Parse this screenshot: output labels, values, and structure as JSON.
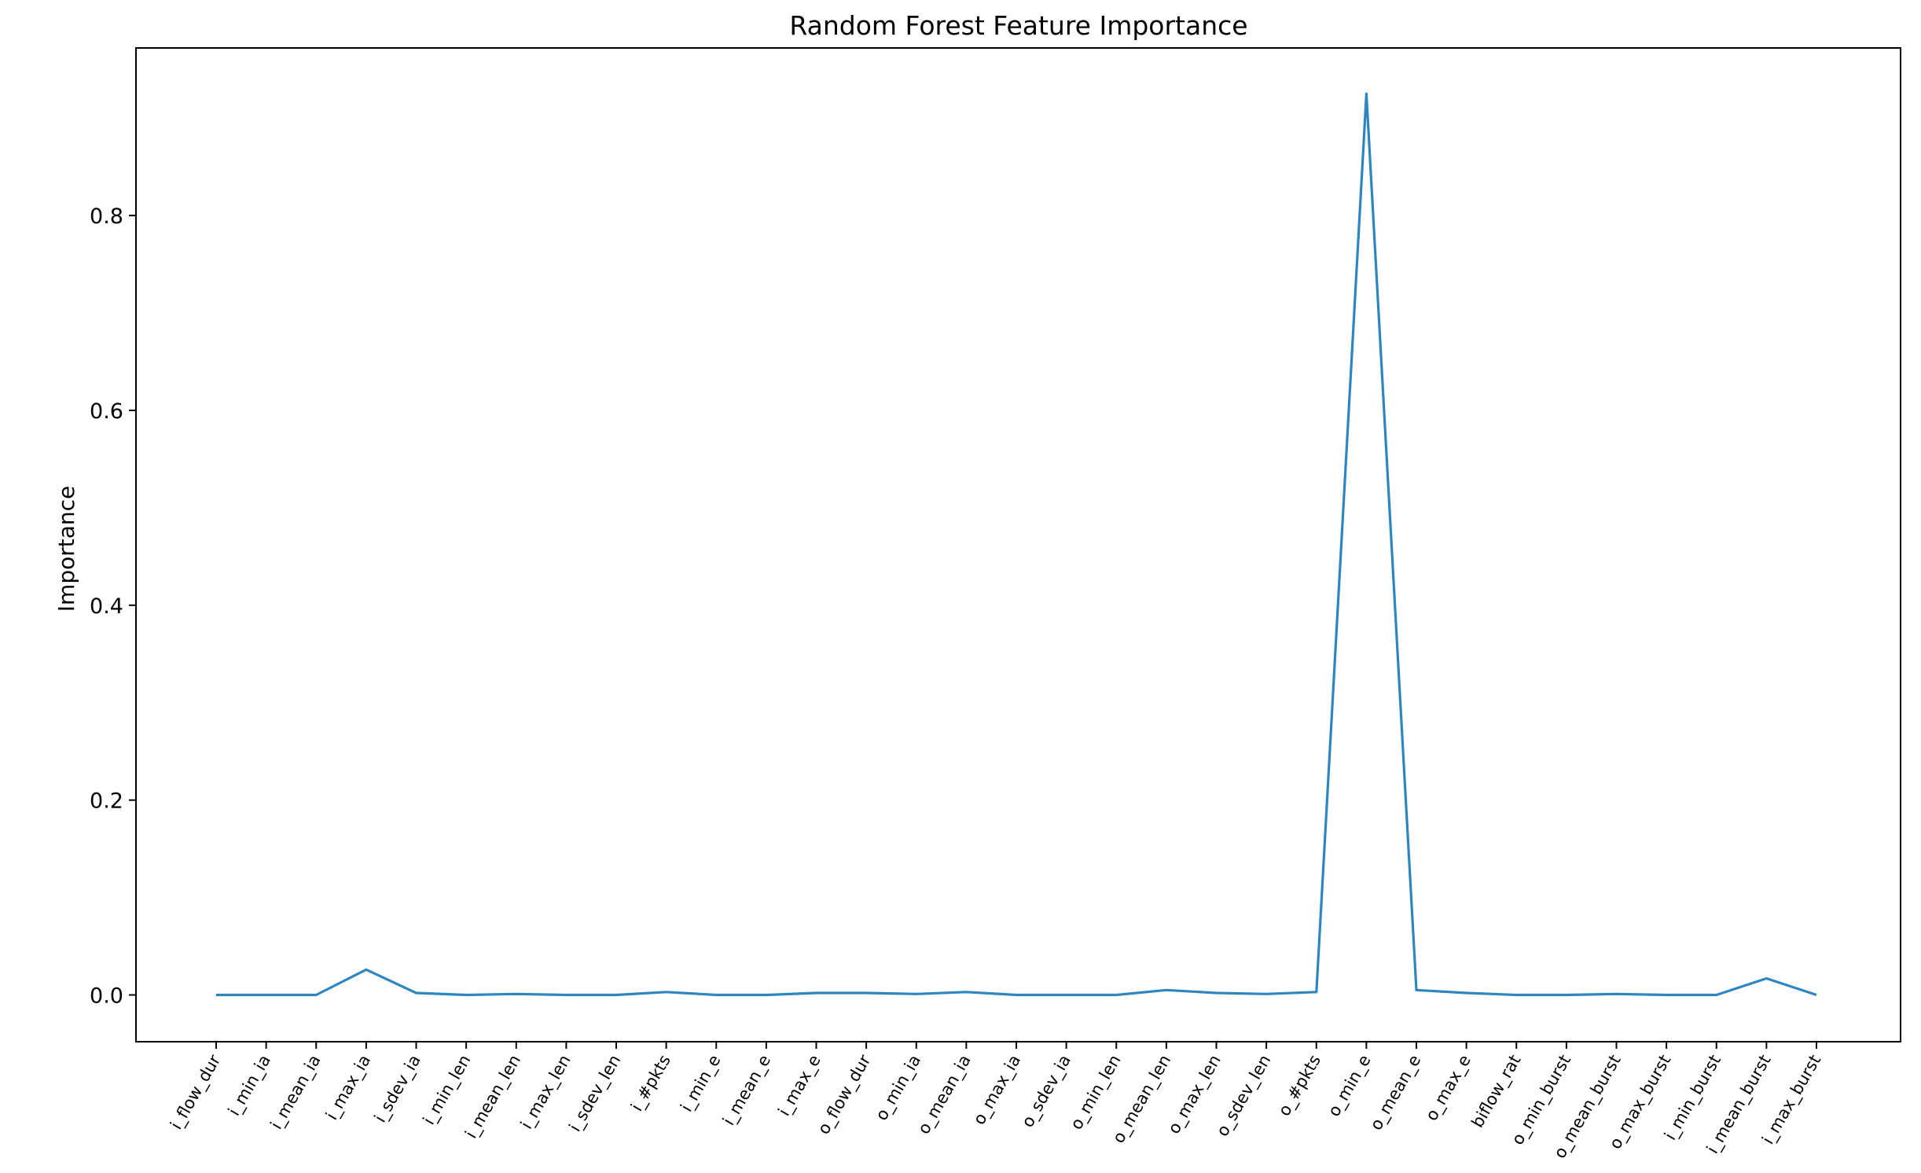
{
  "chart_data": {
    "type": "line",
    "title": "Random Forest Feature Importance",
    "xlabel": "",
    "ylabel": "Importance",
    "ylim": [
      -0.048,
      0.972
    ],
    "yticks": [
      "0.0",
      "0.2",
      "0.4",
      "0.6",
      "0.8"
    ],
    "ytick_values": [
      0.0,
      0.2,
      0.4,
      0.6,
      0.8
    ],
    "grid": false,
    "line_color": "#2e86c1",
    "categories": [
      "i_flow_dur",
      "i_min_ia",
      "i_mean_ia",
      "i_max_ia",
      "i_sdev_ia",
      "i_min_len",
      "i_mean_len",
      "i_max_len",
      "i_sdev_len",
      "i_#pkts",
      "i_min_e",
      "i_mean_e",
      "i_max_e",
      "o_flow_dur",
      "o_min_ia",
      "o_mean_ia",
      "o_max_ia",
      "o_sdev_ia",
      "o_min_len",
      "o_mean_len",
      "o_max_len",
      "o_sdev_len",
      "o_#pkts",
      "o_min_e",
      "o_mean_e",
      "o_max_e",
      "biflow_rat",
      "o_min_burst",
      "o_mean_burst",
      "o_max_burst",
      "i_min_burst",
      "i_mean_burst",
      "i_max_burst"
    ],
    "values": [
      0.0,
      0.0,
      0.0,
      0.026,
      0.002,
      0.0,
      0.001,
      0.0,
      0.0,
      0.003,
      0.0,
      0.0,
      0.002,
      0.002,
      0.001,
      0.003,
      0.0,
      0.0,
      0.0,
      0.005,
      0.002,
      0.001,
      0.003,
      0.925,
      0.005,
      0.002,
      0.0,
      0.0,
      0.001,
      0.0,
      0.0,
      0.017,
      0.0
    ]
  }
}
